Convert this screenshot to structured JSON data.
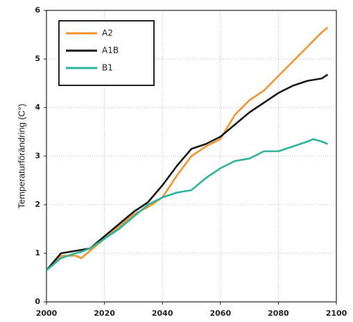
{
  "chart_data": {
    "type": "line",
    "y_label": "Temperaturförändring (C°)",
    "x": [
      2000,
      2005,
      2010,
      2012,
      2015,
      2020,
      2025,
      2030,
      2035,
      2040,
      2045,
      2050,
      2055,
      2060,
      2065,
      2070,
      2075,
      2080,
      2085,
      2090,
      2092,
      2095,
      2097
    ],
    "series": [
      {
        "name": "A2",
        "color": "#f0952e",
        "values": [
          0.65,
          0.95,
          0.95,
          0.9,
          1.05,
          1.3,
          1.55,
          1.8,
          1.95,
          2.15,
          2.6,
          3.0,
          3.2,
          3.35,
          3.85,
          4.15,
          4.35,
          4.65,
          4.95,
          5.25,
          5.37,
          5.55,
          5.65
        ]
      },
      {
        "name": "A1B",
        "color": "#1a1a1a",
        "values": [
          0.65,
          1.0,
          1.05,
          1.07,
          1.1,
          1.35,
          1.6,
          1.85,
          2.05,
          2.4,
          2.8,
          3.15,
          3.25,
          3.4,
          3.65,
          3.9,
          4.1,
          4.3,
          4.45,
          4.55,
          4.57,
          4.6,
          4.68
        ]
      },
      {
        "name": "B1",
        "color": "#2bb39b",
        "values": [
          0.65,
          0.9,
          1.0,
          1.03,
          1.1,
          1.3,
          1.5,
          1.75,
          2.0,
          2.15,
          2.25,
          2.3,
          2.55,
          2.75,
          2.9,
          2.95,
          3.1,
          3.1,
          3.2,
          3.3,
          3.35,
          3.3,
          3.25
        ]
      }
    ],
    "xlim": [
      2000,
      2100
    ],
    "xticks": [
      2000,
      2020,
      2040,
      2060,
      2080,
      2100
    ],
    "ylim": [
      0,
      6
    ],
    "yticks": [
      0,
      1,
      2,
      3,
      4,
      5,
      6
    ],
    "grid": true,
    "legend": "upper left"
  }
}
